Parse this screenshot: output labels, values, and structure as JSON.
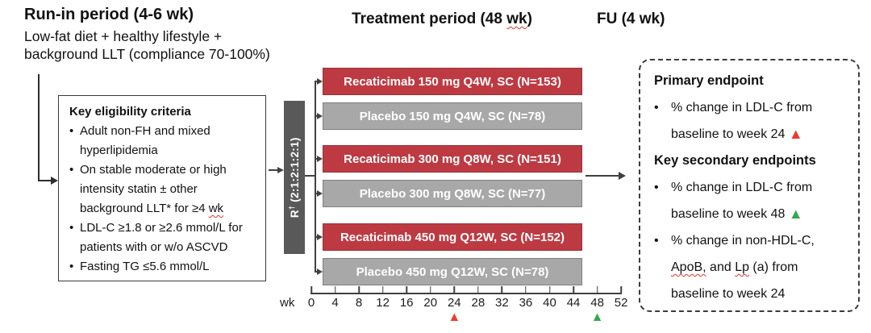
{
  "phases": {
    "runin": {
      "title": "Run-in period (4-6 wk)",
      "desc_line1": "Low-fat diet + healthy lifestyle +",
      "desc_line2": "background LLT (compliance 70-100%)"
    },
    "treatment": {
      "title_pre": "Treatment period (48 ",
      "title_wk": "wk",
      "title_post": ")"
    },
    "followup": {
      "title": "FU (4 wk)"
    }
  },
  "eligibility": {
    "title": "Key eligibility criteria",
    "items": [
      {
        "text": "Adult non-FH and mixed hyperlipidemia"
      },
      {
        "text": "On stable moderate or high intensity statin ± other background LLT* for ≥4 ",
        "squiggle": "wk"
      },
      {
        "text": "LDL-C ≥1.8 or ≥2.6 mmol/L for patients with or w/o ASCVD"
      },
      {
        "text": "Fasting TG ≤5.6 mmol/L"
      }
    ]
  },
  "randomization": {
    "r": "R",
    "dagger": "†",
    "ratio": "(2:1:2:1:2:1)"
  },
  "arms": [
    {
      "label": "Recaticimab 150 mg Q4W, SC (N=153)",
      "group": "recaticimab",
      "n": 153
    },
    {
      "label": "Placebo 150 mg Q4W, SC (N=78)",
      "group": "placebo",
      "n": 78
    },
    {
      "label": "Recaticimab 300 mg Q8W, SC (N=151)",
      "group": "recaticimab",
      "n": 151
    },
    {
      "label": "Placebo 300 mg Q8W, SC (N=77)",
      "group": "placebo",
      "n": 77
    },
    {
      "label": "Recaticimab 450 mg Q12W, SC (N=152)",
      "group": "recaticimab",
      "n": 152
    },
    {
      "label": "Placebo 450 mg Q12W, SC (N=78)",
      "group": "placebo",
      "n": 78
    }
  ],
  "axis": {
    "unit": "wk",
    "tick_labels": [
      "0",
      "4",
      "8",
      "12",
      "16",
      "20",
      "24",
      "28",
      "32",
      "36",
      "40",
      "44",
      "48",
      "52"
    ],
    "markers": [
      {
        "week": "24",
        "color": "#ee3a2c"
      },
      {
        "week": "48",
        "color": "#35a84e"
      }
    ]
  },
  "endpoints": {
    "primary_title": "Primary endpoint",
    "primary_bullet": {
      "text": "% change in LDL-C from baseline to week 24 ",
      "marker_color": "#ee3a2c"
    },
    "secondary_title": "Key secondary endpoints",
    "secondary_bullet1": {
      "text": "% change in LDL-C from baseline to week 48 ",
      "marker_color": "#35a84e"
    },
    "secondary_bullet2": {
      "seg1": "% change in non-HDL-C, ",
      "sq1": "ApoB,",
      "seg2": " and ",
      "sq2": "Lp",
      "seg3": " (a) from baseline to week 24"
    }
  },
  "icons": {
    "bullet": "•",
    "triangle_up": "▲"
  },
  "colors": {
    "recaticimab_arm": "#be3a42",
    "placebo_arm": "#a8a8a8",
    "randomization_bar": "#595959",
    "marker_week24": "#ee3a2c",
    "marker_week48": "#35a84e",
    "squiggle": "#e0382b"
  }
}
